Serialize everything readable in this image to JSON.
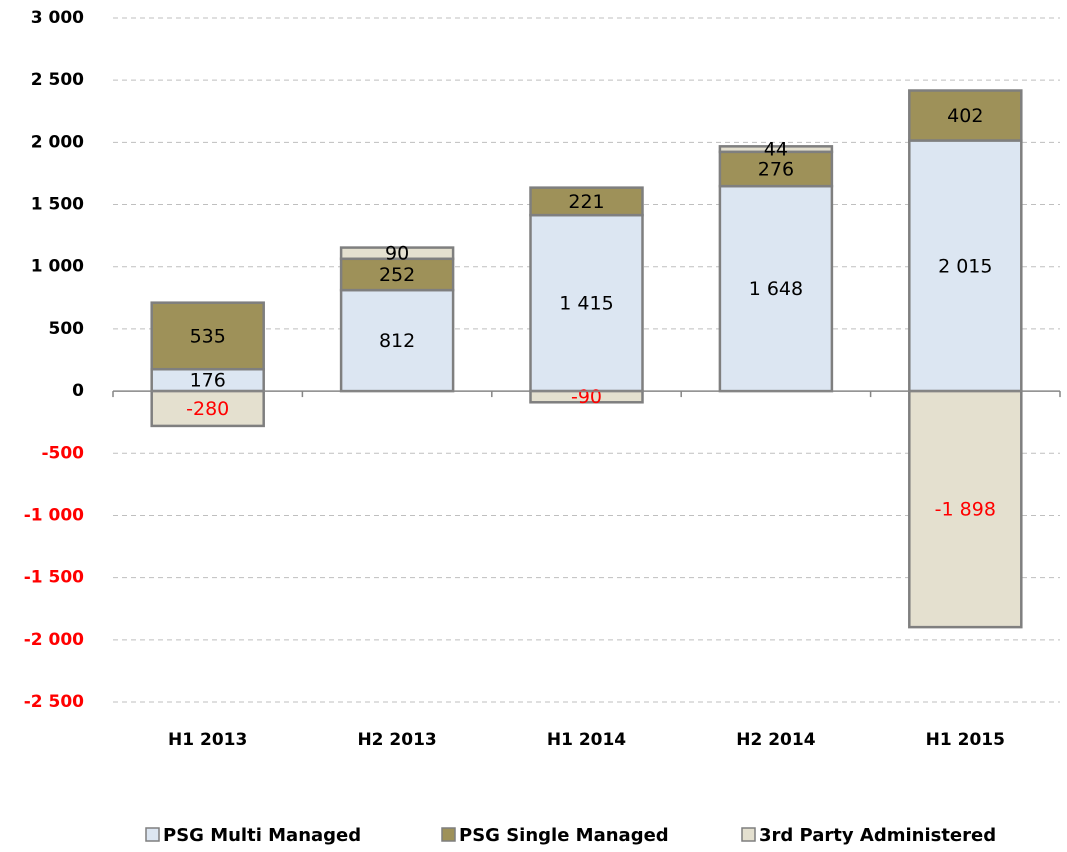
{
  "chart_data": {
    "type": "stacked_bar",
    "categories": [
      "H1 2013",
      "H2 2013",
      "H1 2014",
      "H2 2014",
      "H1 2015"
    ],
    "series": [
      {
        "name": "PSG Multi Managed",
        "color": "#dce6f2",
        "values": [
          176,
          812,
          1415,
          1648,
          2015
        ],
        "value_labels": [
          "176",
          "812",
          "1 415",
          "1 648",
          "2 015"
        ]
      },
      {
        "name": "PSG Single Managed",
        "color": "#9e9159",
        "values": [
          535,
          252,
          221,
          276,
          402
        ]
      },
      {
        "name": "3rd Party Administered",
        "color": "#e4e0cf",
        "values": [
          -280,
          90,
          -90,
          44,
          -1898
        ],
        "value_labels": [
          "-280",
          "90",
          "-90",
          "44",
          "-1 898"
        ]
      }
    ],
    "ylim": [
      -2500,
      3000
    ],
    "yticks": [
      {
        "value": -2500,
        "label": "-2 500"
      },
      {
        "value": -2000,
        "label": "-2 000"
      },
      {
        "value": -1500,
        "label": "-1 500"
      },
      {
        "value": -1000,
        "label": "-1 000"
      },
      -500,
      0,
      500,
      {
        "value": 1000,
        "label": "1 000"
      },
      {
        "value": 1500,
        "label": "1 500"
      },
      {
        "value": 2000,
        "label": "2 000"
      },
      {
        "value": 2500,
        "label": "2 500"
      },
      {
        "value": 3000,
        "label": "3 000"
      }
    ],
    "grid": true,
    "negative_color": "#ff0000",
    "legend": "bottom"
  }
}
